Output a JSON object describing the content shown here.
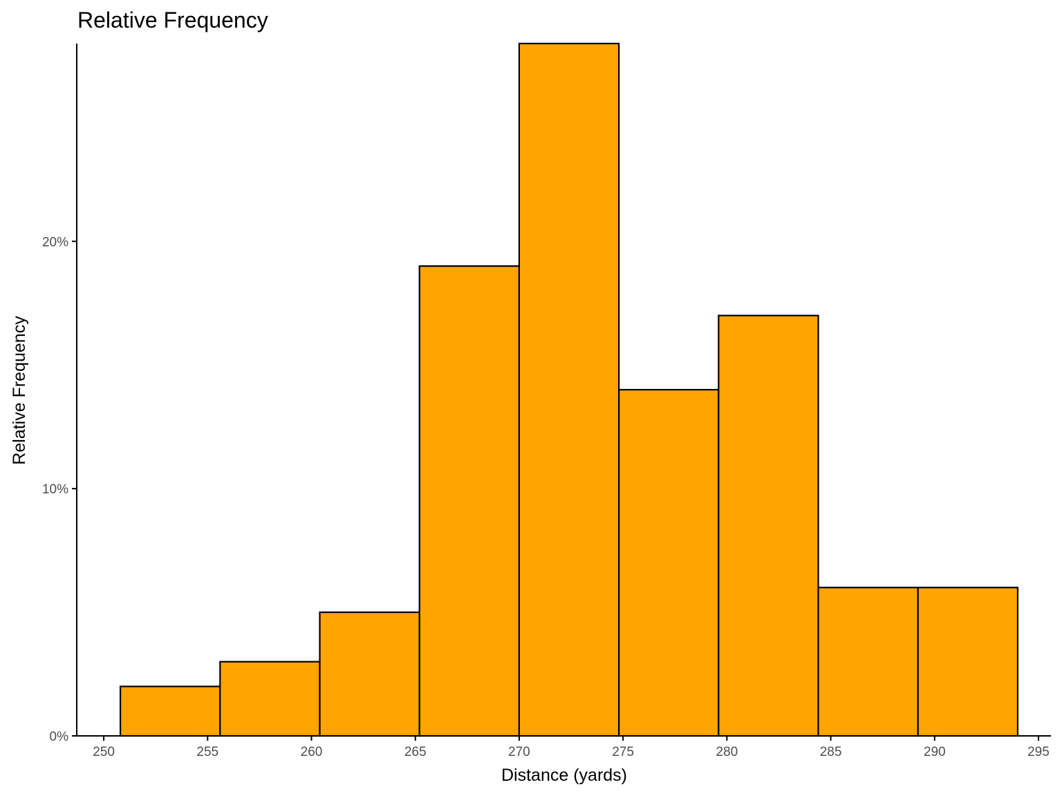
{
  "chart_data": {
    "type": "bar",
    "title": "Relative Frequency",
    "xlabel": "Distance (yards)",
    "ylabel": "Relative Frequency",
    "bin_edges": [
      250.8,
      255.6,
      260.4,
      265.2,
      270.0,
      274.8,
      279.6,
      284.4,
      289.2,
      294.0
    ],
    "values": [
      2,
      3,
      5,
      19,
      28,
      14,
      17,
      6,
      6
    ],
    "value_unit": "%",
    "xlim": [
      248.7,
      295.6
    ],
    "ylim": [
      0,
      28
    ],
    "x_ticks": [
      250,
      255,
      260,
      265,
      270,
      275,
      280,
      285,
      290,
      295
    ],
    "x_tick_labels": [
      "250",
      "255",
      "260",
      "265",
      "270",
      "275",
      "280",
      "285",
      "290",
      "295"
    ],
    "y_ticks": [
      0,
      10,
      20
    ],
    "y_tick_labels": [
      "0%",
      "10%",
      "20%"
    ],
    "grid": false,
    "legend": "none",
    "colors": {
      "bar_fill": "#FFA500",
      "bar_stroke": "#000000",
      "axis": "#000000"
    }
  }
}
